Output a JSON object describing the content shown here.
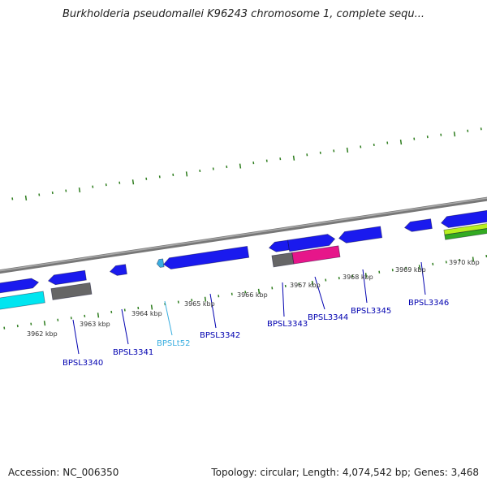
{
  "title": "Burkholderia pseudomallei K96243 chromosome 1, complete sequ...",
  "footer": {
    "accession": "Accession: NC_006350",
    "summary": "Topology: circular; Length: 4,074,542 bp; Genes: 3,468"
  },
  "colors": {
    "backbone": "#888888",
    "tick": "#2e7d1e",
    "gene": "#1a1aee",
    "gene_edge": "#00008b",
    "label": "#0000b0",
    "trna_label": "#3aaee0",
    "trna": "#3aaee0",
    "gray_feature": "#666666",
    "magenta_feature": "#e6168a",
    "cyan_feature": "#00e5f0",
    "green_feature": "#33aa22",
    "lime_feature": "#b8f020"
  },
  "kbp_labels": [
    "3962 kbp",
    "3963 kbp",
    "3964 kbp",
    "3965 kbp",
    "3966 kbp",
    "3967 kbp",
    "3968 kbp",
    "3969 kbp",
    "3970 kbp"
  ],
  "gene_labels": [
    {
      "id": "BPSL3340",
      "kind": "gene"
    },
    {
      "id": "BPSL3341",
      "kind": "gene"
    },
    {
      "id": "BPSLt52",
      "kind": "trna"
    },
    {
      "id": "BPSL3342",
      "kind": "gene"
    },
    {
      "id": "BPSL3343",
      "kind": "gene"
    },
    {
      "id": "BPSL3344",
      "kind": "gene"
    },
    {
      "id": "BPSL3345",
      "kind": "gene"
    },
    {
      "id": "BPSL3346",
      "kind": "gene"
    }
  ]
}
